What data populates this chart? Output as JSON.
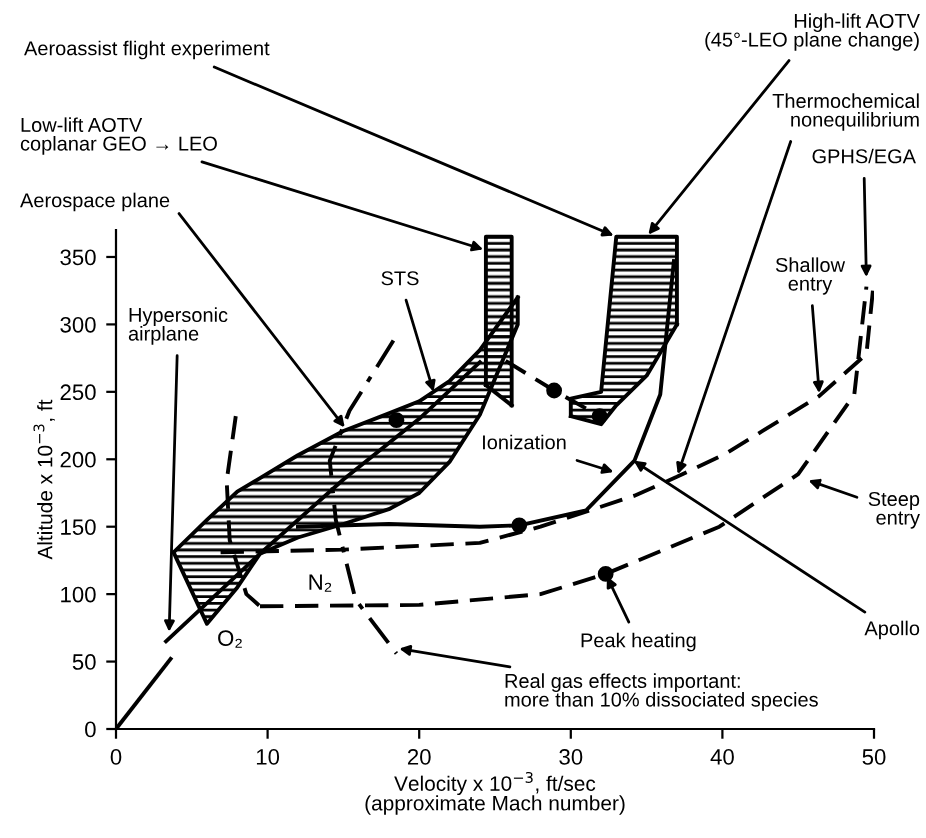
{
  "chart_data": {
    "type": "line",
    "xlabel": "Velocity x 10$^{−3}$, ft/sec\n(approximate Mach number)",
    "ylabel": "Altitude x 10$^{−3}$, ft",
    "xlim": [
      0,
      50
    ],
    "ylim": [
      0,
      370
    ],
    "xticks": [
      0,
      10,
      20,
      30,
      40,
      50
    ],
    "yticks": [
      0,
      50,
      100,
      150,
      200,
      250,
      300,
      350
    ],
    "grid": false,
    "legend": false,
    "series": [
      {
        "color": "#000000",
        "line_style": "solid",
        "x": [
          3.8,
          6,
          8,
          9.5,
          12,
          15,
          18,
          20,
          22,
          24,
          26.5
        ],
        "values": [
          131,
          155,
          176,
          186,
          203,
          221,
          234,
          243,
          258,
          281,
          320
        ]
      },
      {
        "color": "#000000",
        "line_style": "solid",
        "x": [
          3.8,
          6,
          8,
          9.5,
          12,
          15,
          18,
          20,
          22,
          24,
          26.5,
          26.5
        ],
        "values": [
          131,
          78,
          105,
          130,
          142,
          152,
          163,
          175,
          198,
          233,
          300,
          320
        ]
      },
      {
        "color": "#000000",
        "line_style": "solid",
        "x": [
          24.4,
          24.4,
          26.1,
          26.1
        ],
        "values": [
          255,
          365,
          365,
          240
        ]
      },
      {
        "color": "#000000",
        "line_style": "solid",
        "x": [
          24.4,
          26.1
        ],
        "values": [
          255,
          240
        ]
      },
      {
        "color": "#000000",
        "line_style": "solid",
        "x": [
          30,
          30,
          32,
          33,
          35,
          37,
          37
        ],
        "values": [
          232,
          245,
          250,
          365,
          365,
          365,
          300
        ]
      },
      {
        "color": "#000000",
        "line_style": "solid",
        "x": [
          30,
          32,
          33,
          35,
          37
        ],
        "values": [
          232,
          226,
          240,
          262,
          300
        ]
      },
      {
        "color": "#000000",
        "line_style": "solid",
        "x": [
          0,
          3.6
        ],
        "values": [
          0,
          52
        ]
      },
      {
        "color": "#000000",
        "line_style": "solid",
        "x": [
          3.3,
          9.5,
          15,
          20,
          24
        ],
        "values": [
          65,
          130,
          185,
          230,
          272
        ]
      },
      {
        "color": "#000000",
        "line_style": "solid",
        "x": [
          12,
          18,
          24,
          26.6,
          31,
          34.2,
          35.9,
          36.8
        ],
        "values": [
          150,
          152,
          150,
          151,
          162,
          199,
          248,
          347
        ]
      },
      {
        "color": "#000000",
        "line_style": "dashdot",
        "x": [
          18.3,
          15.4,
          14.1,
          14.5,
          15.8,
          18.5
        ],
        "values": [
          288,
          236,
          199,
          155,
          96,
          56
        ]
      },
      {
        "color": "#000000",
        "line_style": "dashed",
        "x": [
          7.9,
          7.3,
          7.5,
          8.6,
          9.5
        ],
        "values": [
          232,
          184,
          140,
          100,
          91
        ]
      },
      {
        "color": "#000000",
        "line_style": "dashed",
        "x": [
          9.5,
          20,
          28,
          32.3,
          39.8,
          45,
          48.7,
          49.5
        ],
        "values": [
          91,
          92,
          100,
          115,
          150,
          189,
          248,
          328
        ]
      },
      {
        "color": "#000000",
        "line_style": "dashed",
        "x": [
          6.9,
          15,
          24,
          28,
          34.2,
          37,
          40.2,
          46.4,
          49.5,
          50
        ],
        "values": [
          131,
          133,
          138,
          150,
          173,
          187,
          204,
          247,
          278,
          333
        ]
      },
      {
        "color": "#000000",
        "line_style": "dashed",
        "x": [
          25.7,
          28.9,
          31.9
        ],
        "values": [
          273,
          251,
          232
        ]
      },
      {
        "type": "scatter",
        "color": "#000000",
        "marker": "circle",
        "x": [
          18.5,
          26.6,
          28.9,
          31.9,
          32.3
        ],
        "values": [
          229,
          151,
          251,
          232,
          115
        ]
      }
    ],
    "annotations": [
      {
        "text": "Aeroassist flight experiment",
        "x": 33,
        "y": 365
      },
      {
        "text": "Low-lift AOTV\ncoplanar GEO → LEO",
        "x": 24.4,
        "y": 355
      },
      {
        "text": "Aerospace plane",
        "x": 15.2,
        "y": 222
      },
      {
        "text": "High-lift AOTV\n(45°-LEO plane change)",
        "x": 35,
        "y": 365
      },
      {
        "text": "Thermochemical\nnonequilibrium",
        "x": 37,
        "y": 187
      },
      {
        "text": "GPHS/EGA",
        "x": 49.5,
        "y": 333
      },
      {
        "text": "Shallow\nentry",
        "x": 46.4,
        "y": 247
      },
      {
        "text": "STS",
        "x": 21,
        "y": 248
      },
      {
        "text": "Hypersonic\nairplane",
        "x": 3.5,
        "y": 70
      },
      {
        "text": "Ionization",
        "x": 33,
        "y": 190
      },
      {
        "text": "Steep\nentry",
        "x": 45.5,
        "y": 185
      },
      {
        "text": "Apollo",
        "x": 34,
        "y": 200
      },
      {
        "text": "Peak heating",
        "x": 32.3,
        "y": 115
      },
      "N₂",
      "O₂",
      {
        "text": "Real gas effects important:\nmore than 10% dissociated species",
        "x": 18.5,
        "y": 60
      }
    ]
  }
}
